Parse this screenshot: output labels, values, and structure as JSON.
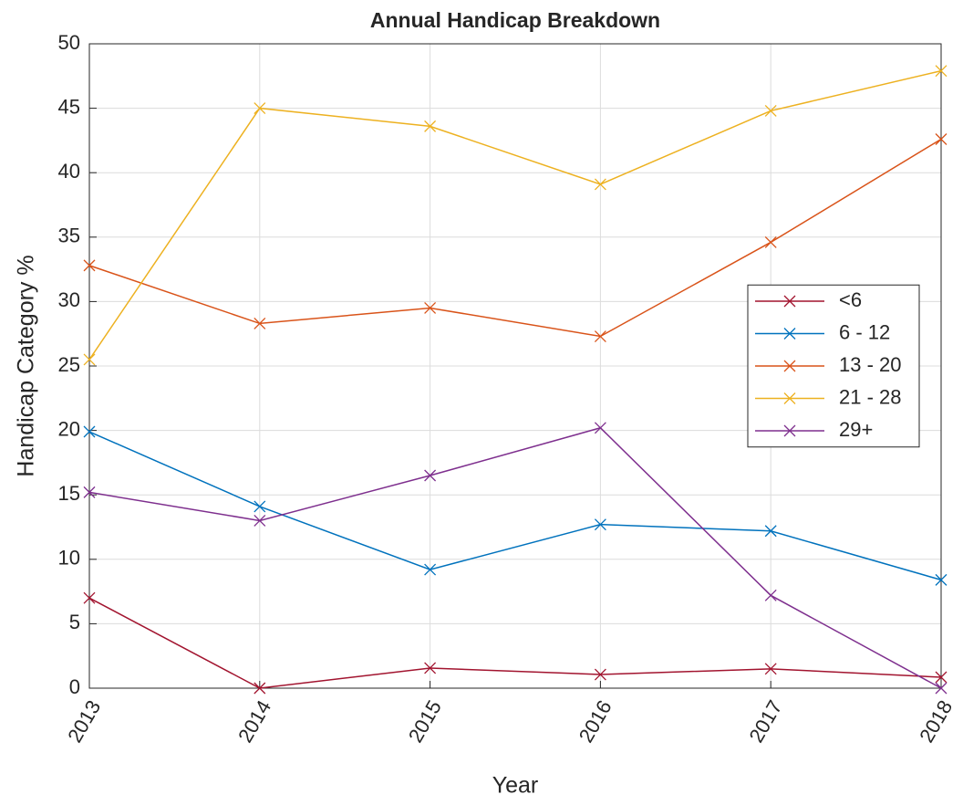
{
  "chart_data": {
    "type": "line",
    "title": "Annual Handicap Breakdown",
    "xlabel": "Year",
    "ylabel": "Handicap Category %",
    "x": [
      2013,
      2014,
      2015,
      2016,
      2017,
      2018
    ],
    "series": [
      {
        "name": "<6",
        "color": "#A2142F",
        "values": [
          7.0,
          0,
          1.56,
          1.06,
          1.5,
          0.85
        ]
      },
      {
        "name": "6 - 12",
        "color": "#0072BD",
        "values": [
          19.9,
          14.1,
          9.2,
          12.7,
          12.2,
          8.4
        ]
      },
      {
        "name": "13 - 20",
        "color": "#D95319",
        "values": [
          32.8,
          28.3,
          29.5,
          27.3,
          34.6,
          42.6
        ]
      },
      {
        "name": "21 - 28",
        "color": "#EDB120",
        "values": [
          25.5,
          45.0,
          43.6,
          39.1,
          44.8,
          47.9
        ]
      },
      {
        "name": "29+",
        "color": "#7E2F8E",
        "values": [
          15.2,
          13.0,
          16.5,
          20.2,
          7.2,
          0
        ]
      }
    ],
    "xlim": [
      2013,
      2018
    ],
    "xticks": [
      2013,
      2014,
      2015,
      2016,
      2017,
      2018
    ],
    "ylim": [
      0,
      50
    ],
    "yticks": [
      0,
      5,
      10,
      15,
      20,
      25,
      30,
      35,
      40,
      45,
      50
    ],
    "grid": true,
    "marker": "x",
    "legend_position": "east"
  }
}
